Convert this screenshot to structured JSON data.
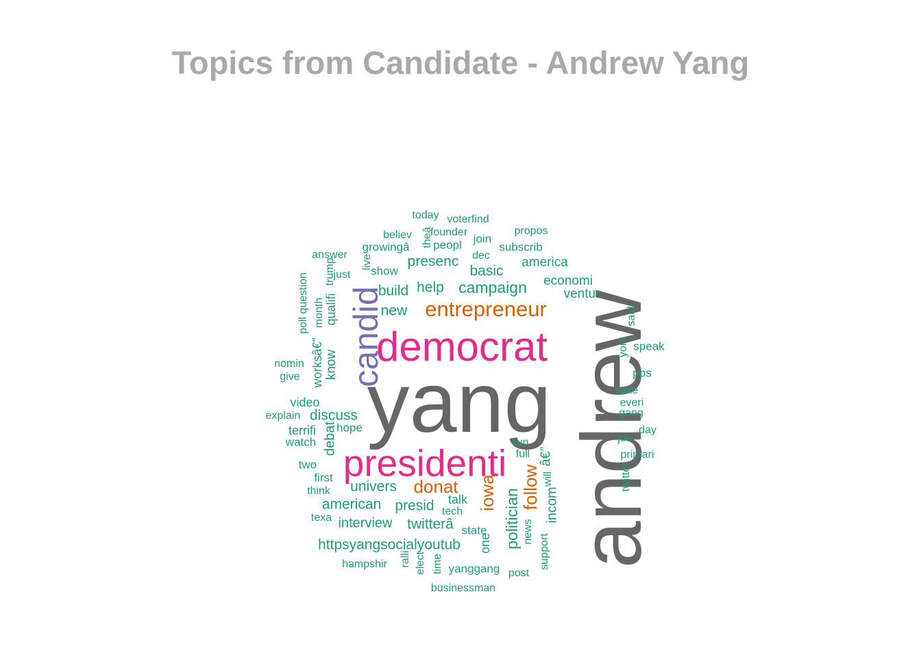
{
  "title": "Topics from Candidate - Andrew Yang",
  "colors": {
    "title": "#a9a9a9",
    "tier_top": "#666666",
    "tier_high": "#e7298a",
    "tier_mid": "#7570b3",
    "tier_low": "#d95f02",
    "tier_base": "#1b9e77"
  },
  "words": [
    {
      "text": "yang",
      "tier": "top"
    },
    {
      "text": "andrew",
      "tier": "top"
    },
    {
      "text": "democrat",
      "tier": "high"
    },
    {
      "text": "presidenti",
      "tier": "high"
    },
    {
      "text": "candid",
      "tier": "mid"
    },
    {
      "text": "entrepreneur",
      "tier": "low"
    },
    {
      "text": "donat",
      "tier": "low"
    },
    {
      "text": "iowa",
      "tier": "low"
    },
    {
      "text": "follow",
      "tier": "low"
    },
    {
      "text": "campaign",
      "tier": "base"
    },
    {
      "text": "politician",
      "tier": "base"
    },
    {
      "text": "presenc",
      "tier": "base"
    },
    {
      "text": "basic",
      "tier": "base"
    },
    {
      "text": "help",
      "tier": "base"
    },
    {
      "text": "build",
      "tier": "base"
    },
    {
      "text": "new",
      "tier": "base"
    },
    {
      "text": "univers",
      "tier": "base"
    },
    {
      "text": "american",
      "tier": "base"
    },
    {
      "text": "presid",
      "tier": "base"
    },
    {
      "text": "twitterâ",
      "tier": "base"
    },
    {
      "text": "interview",
      "tier": "base"
    },
    {
      "text": "httpsyangsocialyoutub",
      "tier": "base"
    },
    {
      "text": "discuss",
      "tier": "base"
    },
    {
      "text": "incom",
      "tier": "base"
    },
    {
      "text": "â€”",
      "tier": "base"
    },
    {
      "text": "america",
      "tier": "base"
    },
    {
      "text": "economi",
      "tier": "base"
    },
    {
      "text": "ventur",
      "tier": "base"
    },
    {
      "text": "today",
      "tier": "base"
    },
    {
      "text": "voterfind",
      "tier": "base"
    },
    {
      "text": "founder",
      "tier": "base"
    },
    {
      "text": "believ",
      "tier": "base"
    },
    {
      "text": "propos",
      "tier": "base"
    },
    {
      "text": "join",
      "tier": "base"
    },
    {
      "text": "growingâ",
      "tier": "base"
    },
    {
      "text": "theâ",
      "tier": "base"
    },
    {
      "text": "peopl",
      "tier": "base"
    },
    {
      "text": "subscrib",
      "tier": "base"
    },
    {
      "text": "dec",
      "tier": "base"
    },
    {
      "text": "answer",
      "tier": "base"
    },
    {
      "text": "live",
      "tier": "base"
    },
    {
      "text": "show",
      "tier": "base"
    },
    {
      "text": "just",
      "tier": "base"
    },
    {
      "text": "trump",
      "tier": "base"
    },
    {
      "text": "poll question",
      "tier": "base"
    },
    {
      "text": "month",
      "tier": "base"
    },
    {
      "text": "qualifi",
      "tier": "base"
    },
    {
      "text": "worksâ€”",
      "tier": "base"
    },
    {
      "text": "know",
      "tier": "base"
    },
    {
      "text": "nomin",
      "tier": "base"
    },
    {
      "text": "give",
      "tier": "base"
    },
    {
      "text": "video",
      "tier": "base"
    },
    {
      "text": "explain",
      "tier": "base"
    },
    {
      "text": "terrifi",
      "tier": "base"
    },
    {
      "text": "hope",
      "tier": "base"
    },
    {
      "text": "watch",
      "tier": "base"
    },
    {
      "text": "debat",
      "tier": "base"
    },
    {
      "text": "two",
      "tier": "base"
    },
    {
      "text": "first",
      "tier": "base"
    },
    {
      "text": "think",
      "tier": "base"
    },
    {
      "text": "texa",
      "tier": "base"
    },
    {
      "text": "talk",
      "tier": "base"
    },
    {
      "text": "tech",
      "tier": "base"
    },
    {
      "text": "state",
      "tier": "base"
    },
    {
      "text": "one",
      "tier": "base"
    },
    {
      "text": "ralli",
      "tier": "base"
    },
    {
      "text": "elect",
      "tier": "base"
    },
    {
      "text": "time",
      "tier": "base"
    },
    {
      "text": "yanggang",
      "tier": "base"
    },
    {
      "text": "post",
      "tier": "base"
    },
    {
      "text": "hampshir",
      "tier": "base"
    },
    {
      "text": "businessman",
      "tier": "base"
    },
    {
      "text": "news",
      "tier": "base"
    },
    {
      "text": "support",
      "tier": "base"
    },
    {
      "text": "will",
      "tier": "base"
    },
    {
      "text": "full",
      "tier": "base"
    },
    {
      "text": "run",
      "tier": "base"
    },
    {
      "text": "said",
      "tier": "base"
    },
    {
      "text": "york",
      "tier": "base"
    },
    {
      "text": "speak",
      "tier": "base"
    },
    {
      "text": "pbs",
      "tier": "base"
    },
    {
      "text": "take",
      "tier": "base"
    },
    {
      "text": "everi",
      "tier": "base"
    },
    {
      "text": "gang",
      "tier": "base"
    },
    {
      "text": "day",
      "tier": "base"
    },
    {
      "text": "joe",
      "tier": "base"
    },
    {
      "text": "primari",
      "tier": "base"
    },
    {
      "text": "twitter",
      "tier": "base"
    }
  ]
}
